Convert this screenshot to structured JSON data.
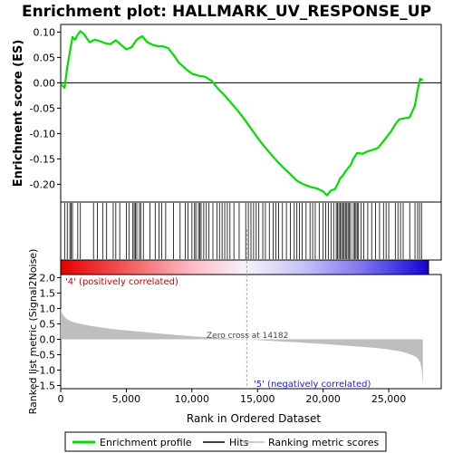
{
  "chart_data": {
    "type": "line",
    "title": "Enrichment plot: HALLMARK_UV_RESPONSE_UP",
    "colors": {
      "enrichment": "#00dd00",
      "hits": "#000000",
      "metric_fill": "#bebebe",
      "pos_label": "#cc0000",
      "neg_label": "#2222cc",
      "zero_line": "#aaaaaa"
    },
    "top_panel": {
      "ylabel": "Enrichment score (ES)",
      "ylim": [
        -0.235,
        0.115
      ],
      "yticks": [
        0.1,
        0.05,
        0.0,
        -0.05,
        -0.1,
        -0.15,
        -0.2
      ],
      "ytick_labels": [
        "0.10",
        "0.05",
        "0.00",
        "-0.05",
        "-0.10",
        "-0.15",
        "-0.20"
      ],
      "series": [
        {
          "name": "Enrichment profile",
          "x": [
            0,
            300,
            500,
            700,
            900,
            1100,
            1300,
            1500,
            1800,
            2200,
            2600,
            3000,
            3400,
            3800,
            4200,
            4600,
            5000,
            5400,
            5800,
            6200,
            6600,
            7000,
            7400,
            7800,
            8200,
            8600,
            9000,
            9500,
            10000,
            10500,
            11000,
            11500,
            12000,
            12500,
            13000,
            13500,
            14000,
            14500,
            15000,
            15500,
            16000,
            16500,
            17000,
            17500,
            18000,
            18500,
            19000,
            19500,
            20000,
            20300,
            20600,
            20900,
            21100,
            21300,
            21500,
            21700,
            21900,
            22100,
            22300,
            22600,
            23000,
            23400,
            23800,
            24200,
            24600,
            24900,
            25200,
            25500,
            25800,
            26200,
            26600,
            27000,
            27200,
            27400,
            27600
          ],
          "y": [
            -0.002,
            -0.01,
            0.03,
            0.06,
            0.09,
            0.085,
            0.095,
            0.102,
            0.095,
            0.08,
            0.085,
            0.082,
            0.078,
            0.076,
            0.084,
            0.075,
            0.066,
            0.07,
            0.085,
            0.092,
            0.08,
            0.075,
            0.072,
            0.072,
            0.068,
            0.055,
            0.04,
            0.028,
            0.018,
            0.014,
            0.012,
            0.004,
            -0.012,
            -0.025,
            -0.04,
            -0.055,
            -0.072,
            -0.09,
            -0.108,
            -0.125,
            -0.14,
            -0.155,
            -0.168,
            -0.18,
            -0.193,
            -0.2,
            -0.205,
            -0.208,
            -0.214,
            -0.222,
            -0.212,
            -0.21,
            -0.2,
            -0.188,
            -0.183,
            -0.175,
            -0.168,
            -0.162,
            -0.15,
            -0.138,
            -0.14,
            -0.135,
            -0.132,
            -0.128,
            -0.115,
            -0.105,
            -0.095,
            -0.082,
            -0.072,
            -0.07,
            -0.068,
            -0.045,
            -0.015,
            0.008,
            0.005
          ]
        }
      ]
    },
    "hits": [
      300,
      500,
      700,
      800,
      900,
      1300,
      1500,
      2500,
      2800,
      3200,
      3500,
      4000,
      4200,
      4500,
      5000,
      5200,
      5500,
      5600,
      5700,
      5800,
      6000,
      6100,
      6300,
      6800,
      7200,
      7500,
      7700,
      8000,
      8600,
      9100,
      9500,
      9700,
      10000,
      10200,
      10300,
      10500,
      10600,
      10700,
      10900,
      11100,
      11300,
      11600,
      11900,
      12100,
      12300,
      12500,
      12700,
      12900,
      13200,
      13600,
      14100,
      14300,
      14500,
      14700,
      14900,
      15100,
      15400,
      15600,
      15900,
      16200,
      16400,
      16600,
      16900,
      17200,
      17500,
      17800,
      18000,
      18200,
      18400,
      18700,
      19000,
      19200,
      19400,
      19700,
      20000,
      20200,
      20400,
      20600,
      20800,
      21000,
      21100,
      21200,
      21300,
      21400,
      21500,
      21600,
      21700,
      21800,
      21900,
      22000,
      22100,
      22300,
      22400,
      22500,
      22600,
      22700,
      22900,
      23100,
      23400,
      23700,
      24000,
      24300,
      24600,
      24800,
      25000,
      25500,
      25700,
      25900,
      26100,
      26600,
      27000,
      27200,
      27350,
      27500
    ],
    "bottom_panel": {
      "ylabel": "Ranked list metric (Signal2Noise)",
      "xlabel": "Rank in Ordered Dataset",
      "xlim": [
        0,
        29000
      ],
      "xticks": [
        0,
        5000,
        10000,
        15000,
        20000,
        25000
      ],
      "xtick_labels": [
        "0",
        "5,000",
        "10,000",
        "15,000",
        "20,000",
        "25,000"
      ],
      "ylim": [
        -1.6,
        2.1
      ],
      "yticks": [
        2.0,
        1.5,
        1.0,
        0.5,
        0.0,
        -0.5,
        -1.0,
        -1.5
      ],
      "ytick_labels": [
        "2.0",
        "1.5",
        "1.0",
        "0.5",
        "0.0",
        "-0.5",
        "-1.0",
        "-1.5"
      ],
      "metric_x": [
        0,
        100,
        300,
        600,
        1000,
        1500,
        2500,
        4000,
        6000,
        8000,
        10000,
        12000,
        14182,
        16000,
        18000,
        20000,
        22000,
        24000,
        25000,
        26000,
        26500,
        27000,
        27200,
        27400,
        27500,
        27600
      ],
      "metric_y": [
        1.0,
        0.85,
        0.72,
        0.62,
        0.55,
        0.5,
        0.42,
        0.33,
        0.25,
        0.17,
        0.1,
        0.05,
        0.0,
        -0.05,
        -0.1,
        -0.15,
        -0.21,
        -0.28,
        -0.33,
        -0.4,
        -0.46,
        -0.55,
        -0.62,
        -0.75,
        -0.95,
        -1.5
      ],
      "zero_cross_label": "Zero cross at 14182",
      "zero_cross": 14182,
      "pos_label": "'4' (positively correlated)",
      "neg_label": "'5' (negatively correlated)"
    },
    "legend": {
      "position": "bottom",
      "entries": [
        "Enrichment profile",
        "Hits",
        "Ranking metric scores"
      ]
    },
    "n_genes": 27600
  }
}
